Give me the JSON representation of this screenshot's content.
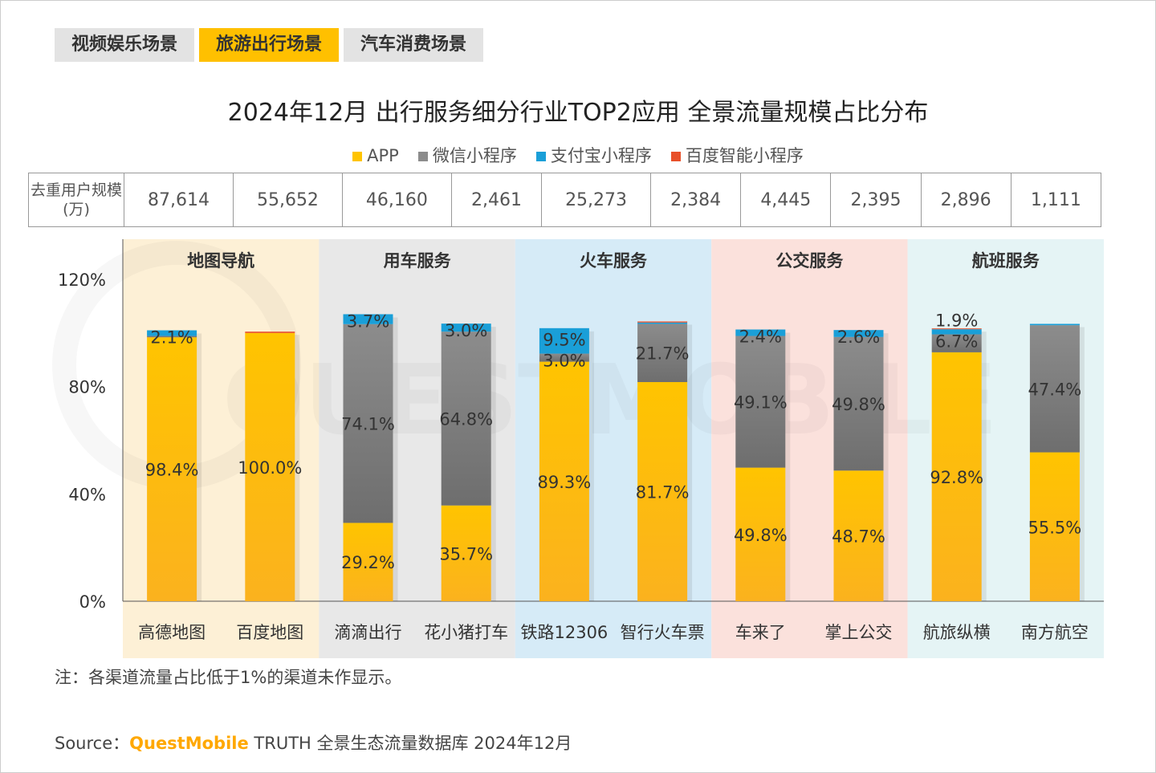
{
  "tabs": [
    {
      "label": "视频娱乐场景",
      "active": false
    },
    {
      "label": "旅游出行场景",
      "active": true
    },
    {
      "label": "汽车消费场景",
      "active": false
    }
  ],
  "source": {
    "prefix": "Source：",
    "brand": "QuestMobile",
    "text": "TRUTH 全景生态流量数据库 2024年12月"
  },
  "note": "注：各渠道流量占比低于1%的渠道未作显示。",
  "watermark": "QUESTMOBILE",
  "table": {
    "header": "去重用户规模(万)",
    "values": [
      "87,614",
      "55,652",
      "46,160",
      "2,461",
      "25,273",
      "2,384",
      "4,445",
      "2,395",
      "2,896",
      "1,111"
    ]
  },
  "chart_data": {
    "type": "bar",
    "stacked": true,
    "title": "2024年12月 出行服务细分行业TOP2应用 全景流量规模占比分布",
    "legend_position": "top",
    "ylim": [
      0,
      120
    ],
    "yticks": [
      "0%",
      "40%",
      "80%",
      "120%"
    ],
    "ytick_values": [
      0,
      40,
      80,
      120
    ],
    "groups": [
      {
        "name": "地图导航",
        "color": "#fdf0d6"
      },
      {
        "name": "用车服务",
        "color": "#e8e8e8"
      },
      {
        "name": "火车服务",
        "color": "#d6ebf7"
      },
      {
        "name": "公交服务",
        "color": "#fbe1dc"
      },
      {
        "name": "航班服务",
        "color": "#e5f4f5"
      }
    ],
    "categories": [
      "高德地图",
      "百度地图",
      "滴滴出行",
      "花小猪打车",
      "铁路12306",
      "智行火车票",
      "车来了",
      "掌上公交",
      "航旅纵横",
      "南方航空"
    ],
    "series": [
      {
        "name": "APP",
        "color": "#ffc400",
        "values": [
          98.4,
          100.0,
          29.2,
          35.7,
          89.3,
          81.7,
          49.8,
          48.7,
          92.8,
          55.5
        ],
        "labels": [
          "98.4%",
          "100.0%",
          "29.2%",
          "35.7%",
          "89.3%",
          "81.7%",
          "49.8%",
          "48.7%",
          "92.8%",
          "55.5%"
        ]
      },
      {
        "name": "微信小程序",
        "color": "#8c8c8c",
        "values": [
          0.5,
          0,
          74.1,
          64.8,
          3.0,
          21.7,
          49.1,
          49.8,
          6.7,
          47.4
        ],
        "labels": [
          null,
          null,
          "74.1%",
          "64.8%",
          "3.0%",
          "21.7%",
          "49.1%",
          "49.8%",
          "6.7%",
          "47.4%"
        ]
      },
      {
        "name": "支付宝小程序",
        "color": "#1a9fd8",
        "values": [
          2.1,
          0,
          3.7,
          3.0,
          9.5,
          0.5,
          2.4,
          2.6,
          1.9,
          0.5
        ],
        "labels": [
          "2.1%",
          null,
          "3.7%",
          "3.0%",
          "9.5%",
          null,
          "2.4%",
          "2.6%",
          "1.9%",
          null
        ]
      },
      {
        "name": "百度智能小程序",
        "color": "#e8502a",
        "values": [
          0,
          0.5,
          0,
          0,
          0,
          0.4,
          0,
          0,
          0.3,
          0
        ],
        "labels": [
          null,
          null,
          null,
          null,
          null,
          null,
          null,
          null,
          null,
          null
        ]
      }
    ]
  }
}
